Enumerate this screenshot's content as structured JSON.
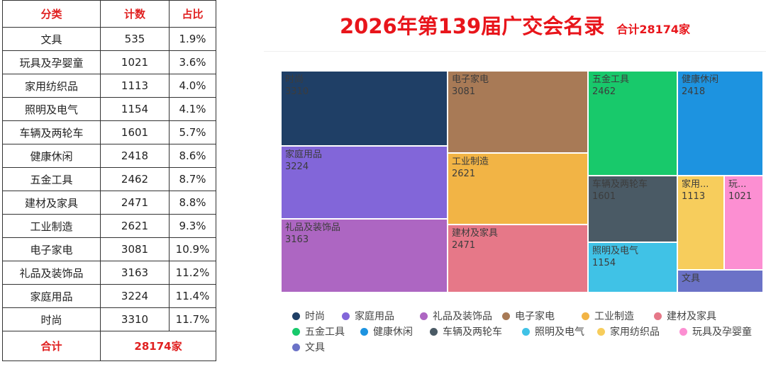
{
  "table": {
    "headers": [
      "分类",
      "计数",
      "占比"
    ],
    "rows": [
      {
        "category": "文具",
        "count": "535",
        "pct": "1.9%"
      },
      {
        "category": "玩具及孕婴童",
        "count": "1021",
        "pct": "3.6%"
      },
      {
        "category": "家用纺织品",
        "count": "1113",
        "pct": "4.0%"
      },
      {
        "category": "照明及电气",
        "count": "1154",
        "pct": "4.1%"
      },
      {
        "category": "车辆及两轮车",
        "count": "1601",
        "pct": "5.7%"
      },
      {
        "category": "健康休闲",
        "count": "2418",
        "pct": "8.6%"
      },
      {
        "category": "五金工具",
        "count": "2462",
        "pct": "8.7%"
      },
      {
        "category": "建材及家具",
        "count": "2471",
        "pct": "8.8%"
      },
      {
        "category": "工业制造",
        "count": "2621",
        "pct": "9.3%"
      },
      {
        "category": "电子家电",
        "count": "3081",
        "pct": "10.9%"
      },
      {
        "category": "礼品及装饰品",
        "count": "3163",
        "pct": "11.2%"
      },
      {
        "category": "家庭用品",
        "count": "3224",
        "pct": "11.4%"
      },
      {
        "category": "时尚",
        "count": "3310",
        "pct": "11.7%"
      }
    ],
    "total_label": "合计",
    "total_value": "28174家"
  },
  "chart_data": {
    "type": "treemap",
    "title": "2026年第139届广交会名录",
    "subtitle": "合计28174家",
    "total": 28174,
    "items": [
      {
        "name": "时尚",
        "value": 3310,
        "display_name": "时尚",
        "display_value": "3310",
        "color": "#1f3f66"
      },
      {
        "name": "家庭用品",
        "value": 3224,
        "display_name": "家庭用品",
        "display_value": "3224",
        "color": "#8266d9"
      },
      {
        "name": "礼品及装饰品",
        "value": 3163,
        "display_name": "礼品及装饰品",
        "display_value": "3163",
        "color": "#ad66c2"
      },
      {
        "name": "电子家电",
        "value": 3081,
        "display_name": "电子家电",
        "display_value": "3081",
        "color": "#a87a56"
      },
      {
        "name": "工业制造",
        "value": 2621,
        "display_name": "工业制造",
        "display_value": "2621",
        "color": "#f2b445"
      },
      {
        "name": "建材及家具",
        "value": 2471,
        "display_name": "建材及家具",
        "display_value": "2471",
        "color": "#e67888"
      },
      {
        "name": "五金工具",
        "value": 2462,
        "display_name": "五金工具",
        "display_value": "2462",
        "color": "#18c96b"
      },
      {
        "name": "健康休闲",
        "value": 2418,
        "display_name": "健康休闲",
        "display_value": "2418",
        "color": "#1d93e0"
      },
      {
        "name": "车辆及两轮车",
        "value": 1601,
        "display_name": "车辆及两轮车",
        "display_value": "1601",
        "color": "#4a5a65"
      },
      {
        "name": "照明及电气",
        "value": 1154,
        "display_name": "照明及电气",
        "display_value": "1154",
        "color": "#40c2e6"
      },
      {
        "name": "家用纺织品",
        "value": 1113,
        "display_name": "家用...",
        "display_value": "1113",
        "color": "#f7cd5c"
      },
      {
        "name": "玩具及孕婴童",
        "value": 1021,
        "display_name": "玩...",
        "display_value": "1021",
        "color": "#fc8fd2"
      },
      {
        "name": "文具",
        "value": 535,
        "display_name": "文具",
        "display_value": "",
        "color": "#6b72c7"
      }
    ],
    "legend": [
      "时尚",
      "家庭用品",
      "礼品及装饰品",
      "电子家电",
      "工业制造",
      "建材及家具",
      "五金工具",
      "健康休闲",
      "车辆及两轮车",
      "照明及电气",
      "家用纺织品",
      "玩具及孕婴童",
      "文具"
    ]
  }
}
